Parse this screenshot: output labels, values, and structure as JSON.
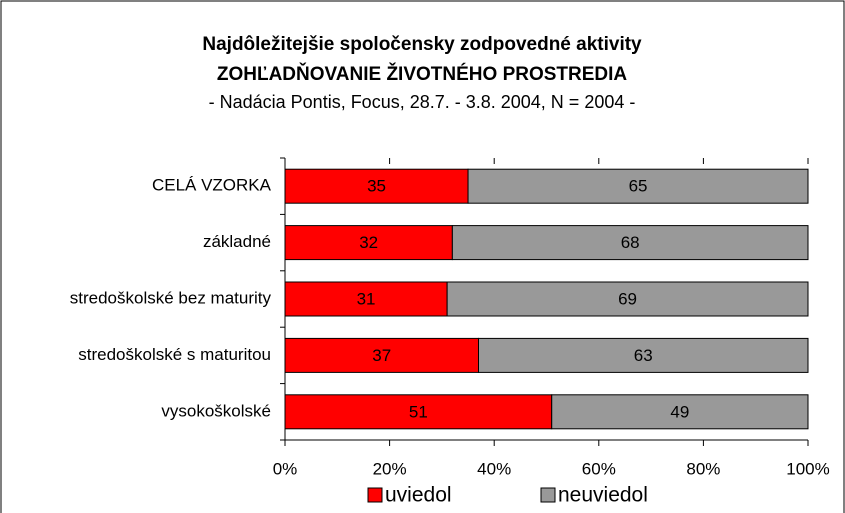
{
  "chart_data": {
    "type": "stacked_bar_horizontal",
    "title": "Najdôležitejšie spoločensky zodpovedné aktivity",
    "subtitle": "ZOHĽADŇOVANIE ŽIVOTNÉHO PROSTREDIA",
    "source": "- Nadácia Pontis, Focus, 28.7. - 3.8. 2004, N = 2004 -",
    "categories": [
      "CELÁ VZORKA",
      "základné",
      "stredoškolské bez maturity",
      "stredoškolské s maturitou",
      "vysokoškolské"
    ],
    "series": [
      {
        "name": "uviedol",
        "color": "#ff0000",
        "values": [
          35,
          32,
          31,
          37,
          51
        ]
      },
      {
        "name": "neuviedol",
        "color": "#999999",
        "values": [
          65,
          68,
          69,
          63,
          49
        ]
      }
    ],
    "xlim": [
      0,
      100
    ],
    "xticks": [
      {
        "value": 0,
        "label": "0%"
      },
      {
        "value": 20,
        "label": "20%"
      },
      {
        "value": 40,
        "label": "40%"
      },
      {
        "value": 60,
        "label": "60%"
      },
      {
        "value": 80,
        "label": "80%"
      },
      {
        "value": 100,
        "label": "100%"
      }
    ],
    "legend": "bottom"
  }
}
